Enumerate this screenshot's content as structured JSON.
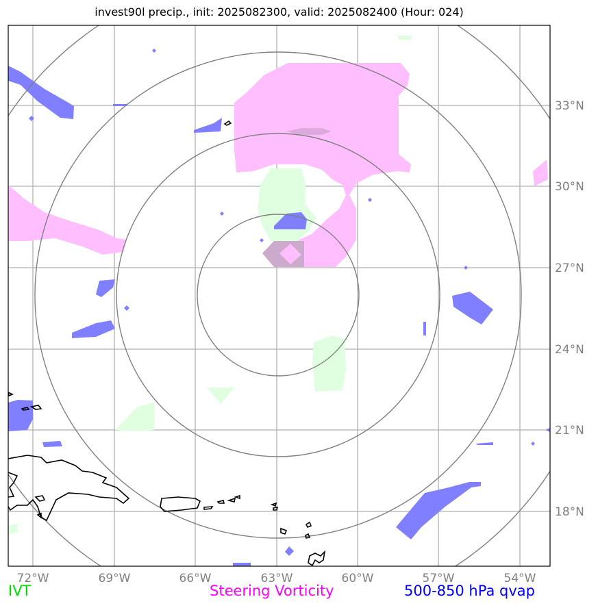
{
  "title": "invest90l precip., init: 2025082300, valid: 2025082400 (Hour: 024)",
  "x_ticks": [
    "72°W",
    "69°W",
    "66°W",
    "63°W",
    "60°W",
    "57°W",
    "54°W"
  ],
  "y_ticks": [
    "33°N",
    "30°N",
    "27°N",
    "24°N",
    "21°N",
    "18°N"
  ],
  "legend": {
    "ivt": "IVT",
    "steering_vorticity": "Steering Vorticity",
    "qvap": "500-850 hPa qvap"
  },
  "colors": {
    "ivt": "#00dd00",
    "steering_vorticity": "#ff00ff",
    "qvap": "#0000ff",
    "ivt_fill": "#e0ffe0",
    "vorticity_fill": "#ffbfff",
    "qvap_fill": "#7f7fff",
    "grid": "#b0b0b0",
    "range_rings": "#808080",
    "coastline": "#000000"
  },
  "map": {
    "extent_lon": [
      -73,
      -53
    ],
    "extent_lat": [
      16,
      36
    ],
    "storm_center": {
      "lon": -63,
      "lat": 26
    },
    "range_rings_count": 4
  }
}
